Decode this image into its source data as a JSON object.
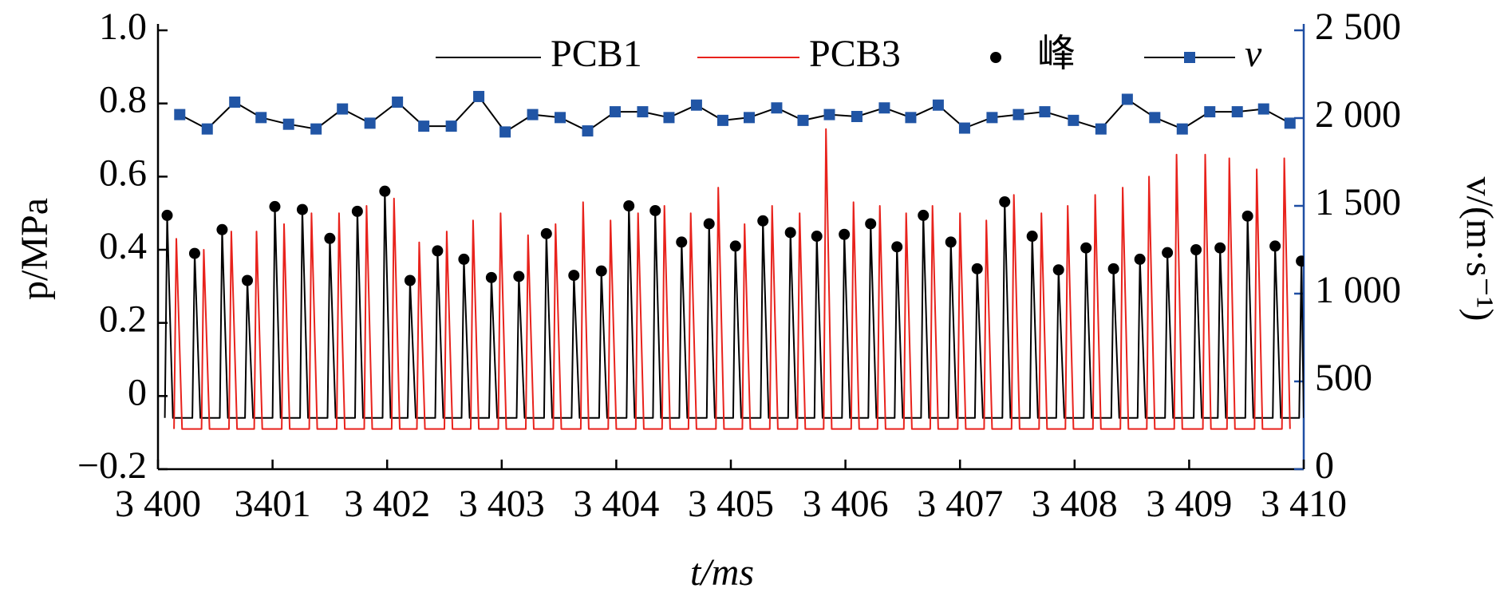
{
  "chart_data": {
    "type": "line",
    "xlabel": "t/ms",
    "ylabel": "p/MPa",
    "y2label": "v/(m·s⁻¹)",
    "xlim": [
      3400,
      3410
    ],
    "xticks": [
      {
        "value": 3400,
        "label": "3 400"
      },
      3401,
      {
        "value": 3402,
        "label": "3 402"
      },
      {
        "value": 3403,
        "label": "3 403"
      },
      {
        "value": 3404,
        "label": "3 404"
      },
      {
        "value": 3405,
        "label": "3 405"
      },
      {
        "value": 3406,
        "label": "3 406"
      },
      {
        "value": 3407,
        "label": "3 407"
      },
      {
        "value": 3408,
        "label": "3 408"
      },
      {
        "value": 3409,
        "label": "3 409"
      },
      {
        "value": 3410,
        "label": "3 410"
      }
    ],
    "ylim": [
      -0.2,
      1.0
    ],
    "yticks": [
      {
        "value": -0.2,
        "label": "−0.2"
      },
      0,
      0.2,
      0.4,
      0.6,
      0.8,
      {
        "value": 1.0,
        "label": "1.0"
      }
    ],
    "y2lim": [
      0,
      2500
    ],
    "y2ticks": [
      0,
      500,
      {
        "value": 1000,
        "label": "1 000"
      },
      {
        "value": 1500,
        "label": "1 500"
      },
      {
        "value": 2000,
        "label": "2 000"
      },
      {
        "value": 2500,
        "label": "2 500"
      }
    ],
    "y2color": "#1f4ea3",
    "series": [
      {
        "name": "PCB1",
        "color": "#000000",
        "style": "line",
        "x": [
          3400.06,
          3400.08,
          3400.13,
          3400.3,
          3400.32,
          3400.37,
          3400.54,
          3400.56,
          3400.61,
          3400.76,
          3400.78,
          3400.83,
          3401.0,
          3401.02,
          3401.07,
          3401.24,
          3401.26,
          3401.31,
          3401.48,
          3401.5,
          3401.55,
          3401.72,
          3401.74,
          3401.79,
          3401.96,
          3401.98,
          3402.03,
          3402.18,
          3402.2,
          3402.25,
          3402.42,
          3402.44,
          3402.49,
          3402.65,
          3402.67,
          3402.72,
          3402.89,
          3402.91,
          3402.96,
          3403.13,
          3403.15,
          3403.2,
          3403.37,
          3403.39,
          3403.44,
          3403.61,
          3403.63,
          3403.68,
          3403.85,
          3403.87,
          3403.92,
          3404.09,
          3404.11,
          3404.16,
          3404.32,
          3404.34,
          3404.39,
          3404.55,
          3404.57,
          3404.62,
          3404.79,
          3404.81,
          3404.86,
          3405.02,
          3405.04,
          3405.09,
          3405.26,
          3405.28,
          3405.33,
          3405.5,
          3405.52,
          3405.57,
          3405.73,
          3405.75,
          3405.8,
          3405.97,
          3405.99,
          3406.04,
          3406.2,
          3406.22,
          3406.27,
          3406.43,
          3406.45,
          3406.5,
          3406.66,
          3406.68,
          3406.73,
          3406.9,
          3406.92,
          3406.97,
          3407.13,
          3407.15,
          3407.2,
          3407.37,
          3407.39,
          3407.44,
          3407.61,
          3407.63,
          3407.68,
          3407.84,
          3407.86,
          3407.91,
          3408.08,
          3408.1,
          3408.15,
          3408.32,
          3408.34,
          3408.39,
          3408.55,
          3408.57,
          3408.62,
          3408.79,
          3408.81,
          3408.86,
          3409.04,
          3409.06,
          3409.11,
          3409.25,
          3409.27,
          3409.32,
          3409.49,
          3409.51,
          3409.56,
          3409.73,
          3409.75,
          3409.8,
          3409.96,
          3409.98,
          3410.0
        ],
        "values": [
          -0.06,
          0.494,
          -0.06,
          -0.06,
          0.39,
          -0.06,
          -0.06,
          0.455,
          -0.06,
          -0.06,
          0.316,
          -0.06,
          -0.06,
          0.518,
          -0.06,
          -0.06,
          0.51,
          -0.06,
          -0.06,
          0.431,
          -0.06,
          -0.06,
          0.505,
          -0.06,
          -0.06,
          0.56,
          -0.06,
          -0.06,
          0.316,
          -0.06,
          -0.06,
          0.397,
          -0.06,
          -0.06,
          0.374,
          -0.06,
          -0.06,
          0.324,
          -0.06,
          -0.06,
          0.327,
          -0.06,
          -0.06,
          0.444,
          -0.06,
          -0.06,
          0.33,
          -0.06,
          -0.06,
          0.342,
          -0.06,
          -0.06,
          0.52,
          -0.06,
          -0.06,
          0.507,
          -0.06,
          -0.06,
          0.421,
          -0.06,
          -0.06,
          0.471,
          -0.06,
          -0.06,
          0.41,
          -0.06,
          -0.06,
          0.479,
          -0.06,
          -0.06,
          0.447,
          -0.06,
          -0.06,
          0.437,
          -0.06,
          -0.06,
          0.442,
          -0.06,
          -0.06,
          0.471,
          -0.06,
          -0.06,
          0.408,
          -0.06,
          -0.06,
          0.494,
          -0.06,
          -0.06,
          0.421,
          -0.06,
          -0.06,
          0.348,
          -0.06,
          -0.06,
          0.531,
          -0.06,
          -0.06,
          0.437,
          -0.06,
          -0.06,
          0.345,
          -0.06,
          -0.06,
          0.405,
          -0.06,
          -0.06,
          0.348,
          -0.06,
          -0.06,
          0.374,
          -0.06,
          -0.06,
          0.392,
          -0.06,
          -0.06,
          0.4,
          -0.06,
          -0.06,
          0.405,
          -0.06,
          -0.06,
          0.492,
          -0.06,
          -0.06,
          0.41,
          -0.06,
          -0.06,
          0.369,
          -0.06
        ]
      },
      {
        "name": "PCB3",
        "color": "#e8221c",
        "style": "line",
        "x": [
          3400.14,
          3400.16,
          3400.21,
          3400.38,
          3400.4,
          3400.45,
          3400.62,
          3400.64,
          3400.69,
          3400.84,
          3400.86,
          3400.91,
          3401.08,
          3401.1,
          3401.15,
          3401.32,
          3401.34,
          3401.39,
          3401.56,
          3401.58,
          3401.63,
          3401.8,
          3401.82,
          3401.87,
          3402.04,
          3402.06,
          3402.11,
          3402.26,
          3402.28,
          3402.33,
          3402.5,
          3402.52,
          3402.57,
          3402.73,
          3402.75,
          3402.8,
          3402.97,
          3402.99,
          3403.04,
          3403.21,
          3403.23,
          3403.28,
          3403.45,
          3403.47,
          3403.52,
          3403.69,
          3403.71,
          3403.76,
          3403.93,
          3403.95,
          3404.0,
          3404.17,
          3404.19,
          3404.24,
          3404.4,
          3404.42,
          3404.47,
          3404.63,
          3404.65,
          3404.7,
          3404.87,
          3404.89,
          3404.94,
          3405.1,
          3405.12,
          3405.17,
          3405.34,
          3405.36,
          3405.41,
          3405.58,
          3405.6,
          3405.65,
          3405.81,
          3405.83,
          3405.88,
          3406.05,
          3406.07,
          3406.12,
          3406.28,
          3406.3,
          3406.35,
          3406.51,
          3406.53,
          3406.58,
          3406.74,
          3406.76,
          3406.81,
          3406.98,
          3407.0,
          3407.05,
          3407.21,
          3407.23,
          3407.28,
          3407.45,
          3407.47,
          3407.52,
          3407.69,
          3407.71,
          3407.76,
          3407.92,
          3407.94,
          3407.99,
          3408.16,
          3408.18,
          3408.23,
          3408.4,
          3408.42,
          3408.47,
          3408.63,
          3408.65,
          3408.7,
          3408.87,
          3408.89,
          3408.94,
          3409.12,
          3409.14,
          3409.19,
          3409.33,
          3409.35,
          3409.4,
          3409.57,
          3409.59,
          3409.64,
          3409.81,
          3409.83,
          3409.88
        ],
        "values": [
          -0.09,
          0.43,
          -0.09,
          -0.09,
          0.4,
          -0.09,
          -0.09,
          0.45,
          -0.09,
          -0.09,
          0.45,
          -0.09,
          -0.09,
          0.47,
          -0.09,
          -0.09,
          0.5,
          -0.09,
          -0.09,
          0.5,
          -0.09,
          -0.09,
          0.52,
          -0.09,
          -0.09,
          0.54,
          -0.09,
          -0.09,
          0.42,
          -0.09,
          -0.09,
          0.45,
          -0.09,
          -0.09,
          0.48,
          -0.09,
          -0.09,
          0.5,
          -0.09,
          -0.09,
          0.44,
          -0.09,
          -0.09,
          0.47,
          -0.09,
          -0.09,
          0.53,
          -0.09,
          -0.09,
          0.48,
          -0.09,
          -0.09,
          0.5,
          -0.09,
          -0.09,
          0.52,
          -0.09,
          -0.09,
          0.5,
          -0.09,
          -0.09,
          0.57,
          -0.09,
          -0.09,
          0.47,
          -0.09,
          -0.09,
          0.52,
          -0.09,
          -0.09,
          0.5,
          -0.09,
          -0.09,
          0.73,
          -0.09,
          -0.09,
          0.53,
          -0.09,
          -0.09,
          0.52,
          -0.09,
          -0.09,
          0.5,
          -0.09,
          -0.09,
          0.52,
          -0.09,
          -0.09,
          0.5,
          -0.09,
          -0.09,
          0.48,
          -0.09,
          -0.09,
          0.55,
          -0.09,
          -0.09,
          0.5,
          -0.09,
          -0.09,
          0.52,
          -0.09,
          -0.09,
          0.55,
          -0.09,
          -0.09,
          0.57,
          -0.09,
          -0.09,
          0.6,
          -0.09,
          -0.09,
          0.66,
          -0.09,
          -0.09,
          0.66,
          -0.09,
          -0.09,
          0.65,
          -0.09,
          -0.09,
          0.62,
          -0.09,
          -0.09,
          0.65,
          -0.09
        ]
      },
      {
        "name": "峰",
        "color": "#000000",
        "style": "points",
        "x": [
          3400.08,
          3400.32,
          3400.56,
          3400.78,
          3401.02,
          3401.26,
          3401.5,
          3401.74,
          3401.98,
          3402.2,
          3402.44,
          3402.67,
          3402.91,
          3403.15,
          3403.39,
          3403.63,
          3403.87,
          3404.11,
          3404.34,
          3404.57,
          3404.81,
          3405.04,
          3405.28,
          3405.52,
          3405.75,
          3405.99,
          3406.22,
          3406.45,
          3406.68,
          3406.92,
          3407.15,
          3407.39,
          3407.63,
          3407.86,
          3408.1,
          3408.34,
          3408.57,
          3408.81,
          3409.06,
          3409.27,
          3409.51,
          3409.75,
          3409.98
        ],
        "values": [
          0.494,
          0.39,
          0.455,
          0.316,
          0.518,
          0.51,
          0.431,
          0.505,
          0.56,
          0.316,
          0.397,
          0.374,
          0.324,
          0.327,
          0.444,
          0.33,
          0.342,
          0.52,
          0.507,
          0.421,
          0.471,
          0.41,
          0.479,
          0.447,
          0.437,
          0.442,
          0.471,
          0.408,
          0.494,
          0.421,
          0.348,
          0.531,
          0.437,
          0.345,
          0.405,
          0.348,
          0.374,
          0.392,
          0.4,
          0.405,
          0.492,
          0.41,
          0.369
        ]
      },
      {
        "name": "v",
        "color": "#000000",
        "marker_color": "#2155a5",
        "style": "line-markers",
        "axis": "y2",
        "x": [
          3400.19,
          3400.43,
          3400.67,
          3400.9,
          3401.14,
          3401.38,
          3401.61,
          3401.85,
          3402.09,
          3402.32,
          3402.56,
          3402.8,
          3403.03,
          3403.27,
          3403.51,
          3403.75,
          3403.99,
          3404.23,
          3404.46,
          3404.7,
          3404.93,
          3405.16,
          3405.4,
          3405.63,
          3405.86,
          3406.1,
          3406.34,
          3406.57,
          3406.81,
          3407.04,
          3407.28,
          3407.51,
          3407.74,
          3407.99,
          3408.23,
          3408.46,
          3408.7,
          3408.94,
          3409.18,
          3409.42,
          3409.65,
          3409.88
        ],
        "values": [
          2020,
          1938,
          2091,
          2003,
          1965,
          1938,
          2052,
          1971,
          2091,
          1954,
          1954,
          2123,
          1921,
          2020,
          2003,
          1927,
          2036,
          2036,
          2003,
          2074,
          1987,
          2003,
          2058,
          1987,
          2020,
          2009,
          2058,
          2003,
          2074,
          1943,
          2003,
          2020,
          2036,
          1987,
          1938,
          2107,
          2003,
          1938,
          2036,
          2036,
          2052,
          1971
        ]
      }
    ]
  }
}
